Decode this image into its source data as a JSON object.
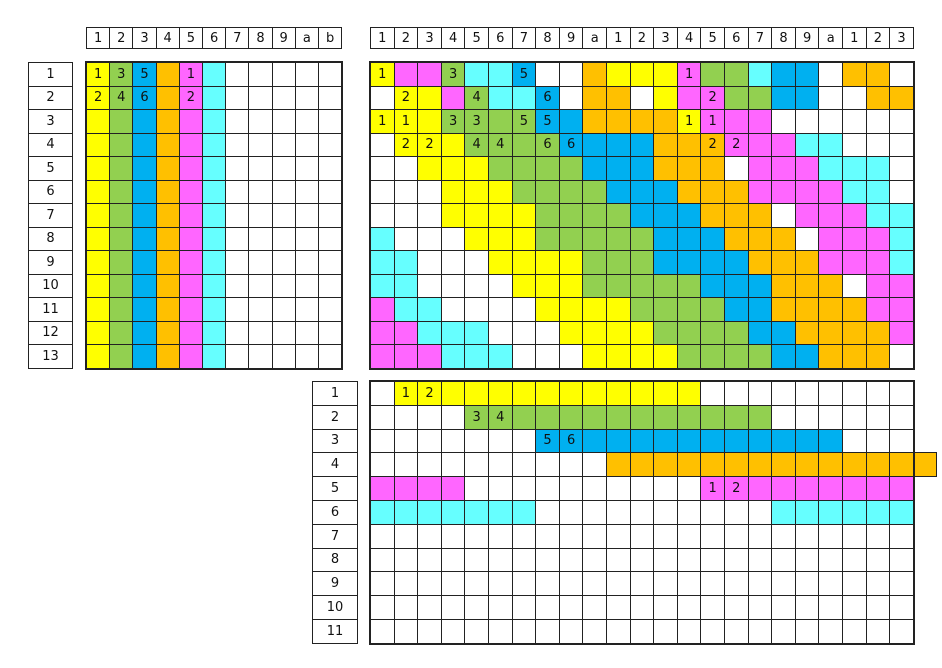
{
  "colors": {
    "y": "#ffff00",
    "g": "#92d050",
    "b": "#00b0f0",
    "o": "#ffc000",
    "m": "#ff66ff",
    "c": "#66ffff",
    "w": "#ffffff"
  },
  "grids": [
    {
      "name": "left-grid",
      "col_labels": [
        "1",
        "2",
        "3",
        "4",
        "5",
        "6",
        "7",
        "8",
        "9",
        "a",
        "b"
      ],
      "row_labels": [
        "1",
        "2",
        "3",
        "4",
        "5",
        "6",
        "7",
        "8",
        "9",
        "10",
        "11",
        "12",
        "13"
      ],
      "rows": [
        "ygbomcwwwww",
        "ygbomcwwwww",
        "ygbomcwwwww",
        "ygbomcwwwww",
        "ygbomcwwwww",
        "ygbomcwwwww",
        "ygbomcwwwww",
        "ygbomcwwwww",
        "ygbomcwwwww",
        "ygbomcwwwww",
        "ygbomcwwwww",
        "ygbomcwwwww",
        "ygbomcwwwww"
      ],
      "marks": [
        {
          "r": 0,
          "c": 0,
          "t": "1"
        },
        {
          "r": 0,
          "c": 1,
          "t": "3"
        },
        {
          "r": 0,
          "c": 2,
          "t": "5"
        },
        {
          "r": 0,
          "c": 4,
          "t": "1"
        },
        {
          "r": 1,
          "c": 0,
          "t": "2"
        },
        {
          "r": 1,
          "c": 1,
          "t": "4"
        },
        {
          "r": 1,
          "c": 2,
          "t": "6"
        },
        {
          "r": 1,
          "c": 4,
          "t": "2"
        }
      ]
    },
    {
      "name": "right-grid",
      "col_labels": [
        "1",
        "2",
        "3",
        "4",
        "5",
        "6",
        "7",
        "8",
        "9",
        "a",
        "1",
        "2",
        "3",
        "4",
        "5",
        "6",
        "7",
        "8",
        "9",
        "a",
        "1",
        "2",
        "3"
      ],
      "row_labels": [],
      "rows": [
        "ymmgccbwwoyyymggcbbwoow",
        "wyymgccbwoowymmggbbwwoo",
        "yyyggggbbooooymmmwwwwww",
        "wyyyggggbbbbooommmccwww",
        "wwyyyggggbbbooowmmmcccw",
        "wwwyyyggggbbbooommmmccw",
        "wwwyyyyggggbbbooowmmmcc",
        "cwwwyyygggggbbbooowmmmc",
        "ccwwwyyyygggbbbbooommmc",
        "ccwwwwyyygggggbbbooowmm",
        "mccwwwwyyyyggggbboooomm",
        "mmcccwwwyyyyggggbboooom",
        "mmmcccwwwyyyyggggbbooow"
      ],
      "marks": [
        {
          "r": 0,
          "c": 0,
          "t": "1"
        },
        {
          "r": 0,
          "c": 3,
          "t": "3"
        },
        {
          "r": 0,
          "c": 6,
          "t": "5"
        },
        {
          "r": 0,
          "c": 13,
          "t": "1"
        },
        {
          "r": 1,
          "c": 1,
          "t": "2"
        },
        {
          "r": 1,
          "c": 4,
          "t": "4"
        },
        {
          "r": 1,
          "c": 7,
          "t": "6"
        },
        {
          "r": 1,
          "c": 14,
          "t": "2"
        },
        {
          "r": 2,
          "c": 0,
          "t": "1"
        },
        {
          "r": 2,
          "c": 1,
          "t": "1"
        },
        {
          "r": 2,
          "c": 3,
          "t": "3"
        },
        {
          "r": 2,
          "c": 4,
          "t": "3"
        },
        {
          "r": 2,
          "c": 6,
          "t": "5"
        },
        {
          "r": 2,
          "c": 7,
          "t": "5"
        },
        {
          "r": 2,
          "c": 13,
          "t": "1"
        },
        {
          "r": 2,
          "c": 14,
          "t": "1"
        },
        {
          "r": 3,
          "c": 1,
          "t": "2"
        },
        {
          "r": 3,
          "c": 2,
          "t": "2"
        },
        {
          "r": 3,
          "c": 4,
          "t": "4"
        },
        {
          "r": 3,
          "c": 5,
          "t": "4"
        },
        {
          "r": 3,
          "c": 7,
          "t": "6"
        },
        {
          "r": 3,
          "c": 8,
          "t": "6"
        },
        {
          "r": 3,
          "c": 14,
          "t": "2"
        },
        {
          "r": 3,
          "c": 15,
          "t": "2"
        }
      ]
    },
    {
      "name": "bottom-grid",
      "col_labels": [],
      "row_labels": [
        "1",
        "2",
        "3",
        "4",
        "5",
        "6",
        "7",
        "8",
        "9",
        "10",
        "11"
      ],
      "rows": [
        "wyyyyyyyyyyyyywwwwwwwww",
        "wwwwgggggggggggggwwwwww",
        "wwwwwwwbbbbbbbbbbbbbwww",
        "wwwwwwwwwwoooooooooooooo",
        "mmmmwwwwwwwwwwmmmmmmmmm",
        "cccccccwwwwwwwwwwcccccc",
        "wwwwwwwwwwwwwwwwwwwwwww",
        "wwwwwwwwwwwwwwwwwwwwwww",
        "wwwwwwwwwwwwwwwwwwwwwww",
        "wwwwwwwwwwwwwwwwwwwwwww",
        "wwwwwwwwwwwwwwwwwwwwwww"
      ],
      "marks": [
        {
          "r": 0,
          "c": 1,
          "t": "1"
        },
        {
          "r": 0,
          "c": 2,
          "t": "2"
        },
        {
          "r": 1,
          "c": 4,
          "t": "3"
        },
        {
          "r": 1,
          "c": 5,
          "t": "4"
        },
        {
          "r": 2,
          "c": 7,
          "t": "5"
        },
        {
          "r": 2,
          "c": 8,
          "t": "6"
        },
        {
          "r": 4,
          "c": 14,
          "t": "1"
        },
        {
          "r": 4,
          "c": 15,
          "t": "2"
        }
      ]
    }
  ]
}
